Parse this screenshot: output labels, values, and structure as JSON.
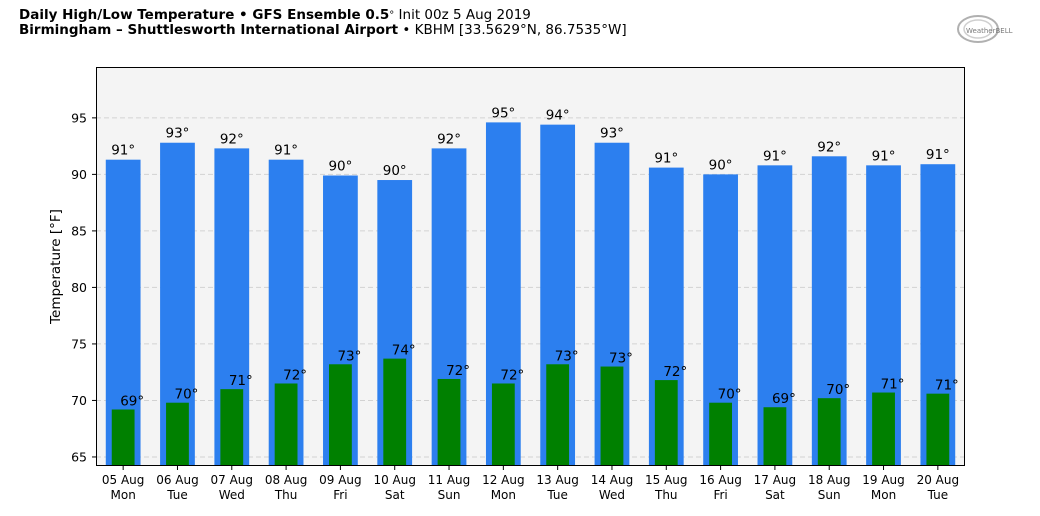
{
  "header": {
    "line1_bold": "Daily High/Low Temperature • GFS Ensemble 0.5",
    "line1_deg": "°",
    "line1_rest": " Init 00z 5 Aug 2019",
    "line2_bold": "Birmingham – Shuttlesworth International Airport",
    "line2_rest": " • KBHM [33.5629°N, 86.7535°W]"
  },
  "logo": {
    "text": "WeatherBELL",
    "icon": "weatherbell-logo"
  },
  "colors": {
    "high": "#2c7fef",
    "low": "#008000",
    "plot_bg": "#f4f4f4"
  },
  "chart_data": {
    "type": "bar",
    "ylabel": "Temperature [°F]",
    "ylim": [
      64.2,
      99.5
    ],
    "yticks": [
      65,
      70,
      75,
      80,
      85,
      90,
      95
    ],
    "grid": true,
    "categories": [
      [
        "05 Aug",
        "Mon"
      ],
      [
        "06 Aug",
        "Tue"
      ],
      [
        "07 Aug",
        "Wed"
      ],
      [
        "08 Aug",
        "Thu"
      ],
      [
        "09 Aug",
        "Fri"
      ],
      [
        "10 Aug",
        "Sat"
      ],
      [
        "11 Aug",
        "Sun"
      ],
      [
        "12 Aug",
        "Mon"
      ],
      [
        "13 Aug",
        "Tue"
      ],
      [
        "14 Aug",
        "Wed"
      ],
      [
        "15 Aug",
        "Thu"
      ],
      [
        "16 Aug",
        "Fri"
      ],
      [
        "17 Aug",
        "Sat"
      ],
      [
        "18 Aug",
        "Sun"
      ],
      [
        "19 Aug",
        "Mon"
      ],
      [
        "20 Aug",
        "Tue"
      ]
    ],
    "series": [
      {
        "key": "high",
        "values": [
          91.3,
          92.8,
          92.3,
          91.3,
          89.9,
          89.5,
          92.3,
          94.6,
          94.4,
          92.8,
          90.6,
          90.0,
          90.8,
          91.6,
          90.8,
          90.9
        ],
        "labels": [
          "91°",
          "93°",
          "92°",
          "91°",
          "90°",
          "90°",
          "92°",
          "95°",
          "94°",
          "93°",
          "91°",
          "90°",
          "91°",
          "92°",
          "91°",
          "91°"
        ]
      },
      {
        "key": "low",
        "values": [
          69.2,
          69.8,
          71.0,
          71.5,
          73.2,
          73.7,
          71.9,
          71.5,
          73.2,
          73.0,
          71.8,
          69.8,
          69.4,
          70.2,
          70.7,
          70.6
        ],
        "labels": [
          "69°",
          "70°",
          "71°",
          "72°",
          "73°",
          "74°",
          "72°",
          "72°",
          "73°",
          "73°",
          "72°",
          "70°",
          "69°",
          "70°",
          "71°",
          "71°"
        ]
      }
    ]
  }
}
